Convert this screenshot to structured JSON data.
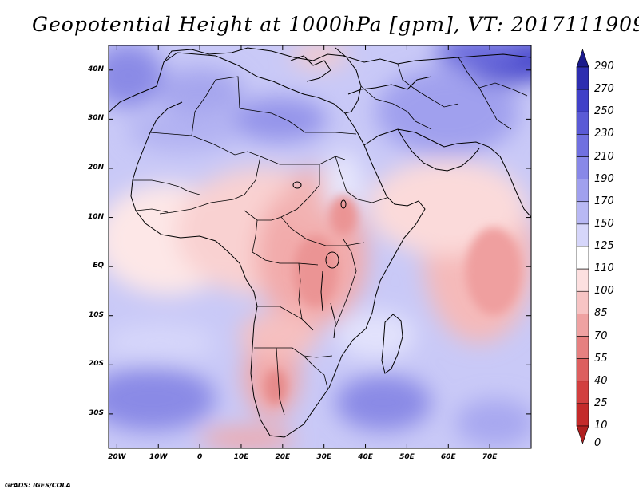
{
  "title": "Geopotential Height at 1000hPa [gpm], VT: 2017111909",
  "credit": "GrADS: IGES/COLA",
  "lat_ticks": [
    "40N",
    "30N",
    "20N",
    "10N",
    "EQ",
    "10S",
    "20S",
    "30S"
  ],
  "lon_ticks": [
    "20W",
    "10W",
    "0",
    "10E",
    "20E",
    "30E",
    "40E",
    "50E",
    "60E",
    "70E"
  ],
  "colorbar": {
    "levels": [
      "290",
      "270",
      "250",
      "230",
      "210",
      "190",
      "170",
      "150",
      "125",
      "110",
      "100",
      "85",
      "70",
      "55",
      "40",
      "25",
      "10",
      "0"
    ],
    "colors": [
      "#1a1a8c",
      "#2d2db0",
      "#4040c8",
      "#5a5ad6",
      "#7070e0",
      "#8888e8",
      "#a0a0ee",
      "#b8b8f4",
      "#d6d6fa",
      "#ffffff",
      "#fde0e0",
      "#f7c4c4",
      "#efa2a2",
      "#e68080",
      "#dd5f5f",
      "#d23f3f",
      "#c42a2a",
      "#b01f1f"
    ]
  },
  "map": {
    "lon_range": [
      -22,
      80
    ],
    "lat_range": [
      -37,
      45
    ]
  }
}
